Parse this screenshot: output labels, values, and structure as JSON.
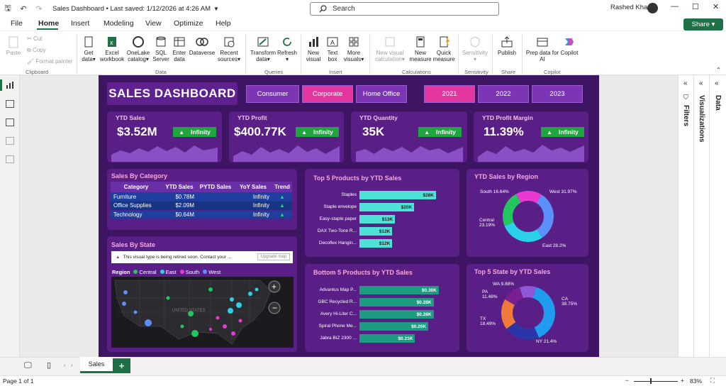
{
  "titlebar": {
    "doc_title": "Sales Dashboard • Last saved: 1/12/2026 at 4:26 AM",
    "search_placeholder": "Search",
    "user": "Rashed Khan"
  },
  "menu": [
    "File",
    "Home",
    "Insert",
    "Modeling",
    "View",
    "Optimize",
    "Help"
  ],
  "share_label": "Share",
  "ribbon": {
    "clipboard": {
      "paste": "Paste",
      "cut": "Cut",
      "copy": "Copy",
      "format": "Format painter",
      "group": "Clipboard"
    },
    "data": [
      {
        "l1": "Get",
        "l2": "data"
      },
      {
        "l1": "Excel",
        "l2": "workbook"
      },
      {
        "l1": "OneLake",
        "l2": "catalog"
      },
      {
        "l1": "SQL",
        "l2": "Server"
      },
      {
        "l1": "Enter",
        "l2": "data"
      },
      {
        "l1": "Dataverse",
        "l2": ""
      },
      {
        "l1": "Recent",
        "l2": "sources"
      }
    ],
    "data_group": "Data",
    "queries": [
      {
        "l1": "Transform",
        "l2": "data"
      },
      {
        "l1": "Refresh",
        "l2": ""
      }
    ],
    "queries_group": "Queries",
    "insert": [
      {
        "l1": "New",
        "l2": "visual"
      },
      {
        "l1": "Text",
        "l2": "box"
      },
      {
        "l1": "More",
        "l2": "visuals"
      }
    ],
    "insert_group": "Insert",
    "calc": [
      {
        "l1": "New visual",
        "l2": "calculation"
      },
      {
        "l1": "New",
        "l2": "measure"
      },
      {
        "l1": "Quick",
        "l2": "measure"
      }
    ],
    "calc_group": "Calculations",
    "sens": {
      "l1": "Sensitivity",
      "group": "Sensitivity"
    },
    "share": {
      "l1": "Publish",
      "group": "Share"
    },
    "copilot": {
      "l1": "Prep data for",
      "l2": "AI",
      "l3": "Copilot",
      "group": "Copilot"
    }
  },
  "dashboard": {
    "title": "SALES DASHBOARD",
    "segments": [
      "Consumer",
      "Corporate",
      "Home Office"
    ],
    "years": [
      "2021",
      "2022",
      "2023"
    ],
    "kpis": [
      {
        "title": "YTD Sales",
        "value": "$3.52M",
        "badge": "Infinity"
      },
      {
        "title": "YTD Profit",
        "value": "$400.77K",
        "badge": "Infinity"
      },
      {
        "title": "YTD Quantity",
        "value": "35K",
        "badge": "Infinity"
      },
      {
        "title": "YTD Profit Margin",
        "value": "11.39%",
        "badge": "Infinity"
      }
    ],
    "category": {
      "title": "Sales By Category",
      "headers": [
        "Category",
        "YTD Sales",
        "PYTD Sales",
        "YoY Sales",
        "Trend"
      ],
      "rows": [
        [
          "Furniture",
          "$0.78M",
          "",
          "Infinity",
          "▲"
        ],
        [
          "Office Supplies",
          "$2.09M",
          "",
          "Infinity",
          "▲"
        ],
        [
          "Technology",
          "$0.64M",
          "",
          "Infinity",
          "▲"
        ]
      ]
    },
    "state": {
      "title": "Sales By State",
      "warning": "This visual type is being retired soon. Contact your ...",
      "upgrade": "Upgrade map",
      "legend_title": "Region",
      "legend": [
        "Central",
        "East",
        "South",
        "West"
      ],
      "map_label": "UNITED STATES"
    },
    "top5_title": "Top 5 Products by YTD Sales",
    "bottom5_title": "Bottom 5 Products by YTD Sales",
    "region_title": "YTD Sales by Region",
    "state5_title": "Top 5 State by YTD Sales"
  },
  "chart_data": [
    {
      "type": "bar",
      "title": "Top 5 Products by YTD Sales",
      "categories": [
        "Staples",
        "Staple envelope",
        "Easy-staple paper",
        "DAX Two-Tone R...",
        "Decoflex Hangin..."
      ],
      "values": [
        28,
        20,
        13,
        12,
        12
      ],
      "labels": [
        "$28K",
        "$20K",
        "$13K",
        "$12K",
        "$12K"
      ],
      "color": "#4ee1d6"
    },
    {
      "type": "bar",
      "title": "Bottom 5 Products by YTD Sales",
      "categories": [
        "Advantus Map P...",
        "GBC Recycled R...",
        "Avery Hi-Liter C...",
        "Spiral Phone Me...",
        "Jabra BIZ 2300 ..."
      ],
      "values": [
        0.3,
        0.28,
        0.28,
        0.26,
        0.21
      ],
      "labels": [
        "$0.30K",
        "$0.28K",
        "$0.28K",
        "$0.26K",
        "$0.21K"
      ],
      "color": "#1e9c82"
    },
    {
      "type": "pie",
      "title": "YTD Sales by Region",
      "categories": [
        "West",
        "East",
        "Central",
        "South"
      ],
      "values": [
        31.97,
        28.2,
        23.19,
        16.64
      ],
      "labels": [
        "West 31.97%",
        "East 28.2%",
        "Central\n23.19%",
        "South 16.64%"
      ],
      "colors": [
        "#5b8ff9",
        "#2ad1e8",
        "#22c55e",
        "#e83ad0"
      ]
    },
    {
      "type": "pie",
      "title": "Top 5 State by YTD Sales",
      "categories": [
        "CA",
        "NY",
        "TX",
        "PA",
        "WA"
      ],
      "values": [
        38.75,
        21.4,
        18.49,
        11.48,
        9.88
      ],
      "labels": [
        "CA\n38.75%",
        "NY 21.4%",
        "TX\n18.49%",
        "PA\n11.48%",
        "WA 9.88%"
      ],
      "colors": [
        "#1f9bf0",
        "#2a35a8",
        "#f07a3a",
        "#7a1f8f",
        "#8f58d6"
      ]
    }
  ],
  "tabs": {
    "sheet": "Sales"
  },
  "status": {
    "page": "Page 1 of 1",
    "zoom": "83%"
  },
  "panes": {
    "filters": "Filters",
    "visualizations": "Visualizations",
    "data": "Data"
  }
}
